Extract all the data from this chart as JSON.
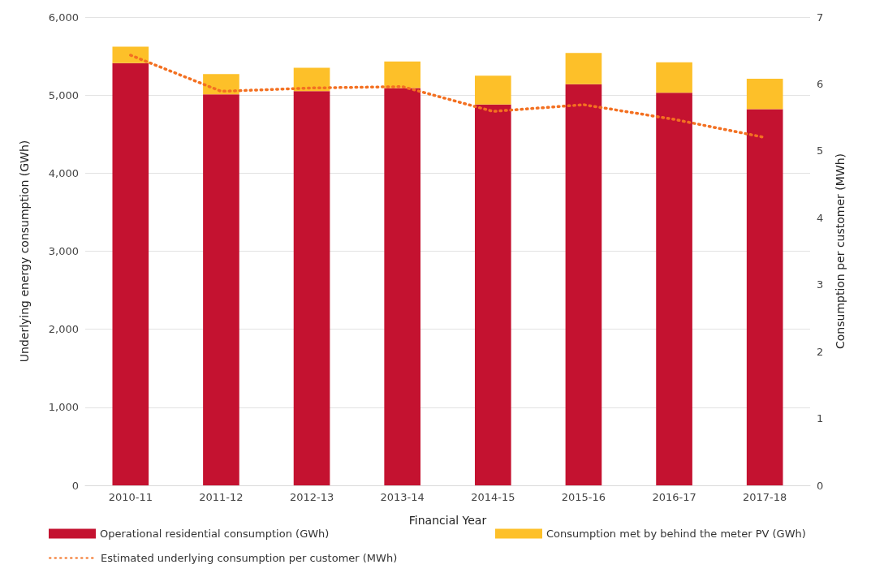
{
  "chart_data": {
    "type": "bar",
    "xlabel": "Financial Year",
    "ylabel": "Underlying energy consumption (GWh)",
    "y2label": "Consumption per customer (MWh)",
    "categories": [
      "2010-11",
      "2011-12",
      "2012-13",
      "2013-14",
      "2014-15",
      "2015-16",
      "2016-17",
      "2017-18"
    ],
    "series": [
      {
        "name": "Operational residential consumption (GWh)",
        "color": "#c41230",
        "values": [
          5410,
          5010,
          5050,
          5090,
          4880,
          5140,
          5030,
          4820
        ]
      },
      {
        "name": "Consumption met by behind the meter PV (GWh)",
        "color": "#fdc029",
        "values": [
          210,
          260,
          300,
          340,
          370,
          400,
          390,
          390
        ]
      },
      {
        "name": "Estimated underlying consumption per customer (MWh)",
        "type": "line",
        "axis": "y2",
        "color": "#f37021",
        "line_style": "dotted",
        "values": [
          6.43,
          5.89,
          5.94,
          5.96,
          5.59,
          5.69,
          5.47,
          5.2
        ]
      }
    ],
    "stacked": true,
    "ylim": [
      0,
      6000
    ],
    "yticks": [
      0,
      {
        "value": 1000,
        "label": "1,000"
      },
      {
        "value": 2000,
        "label": "2,000"
      },
      {
        "value": 3000,
        "label": "3,000"
      },
      {
        "value": 4000,
        "label": "4,000"
      },
      {
        "value": 5000,
        "label": "5,000"
      },
      {
        "value": 6000,
        "label": "6,000"
      }
    ],
    "y2lim": [
      0,
      7
    ],
    "y2ticks": [
      0,
      1,
      2,
      3,
      4,
      5,
      6,
      7
    ],
    "grid": "y",
    "legend": "bottom",
    "marker": "none"
  }
}
